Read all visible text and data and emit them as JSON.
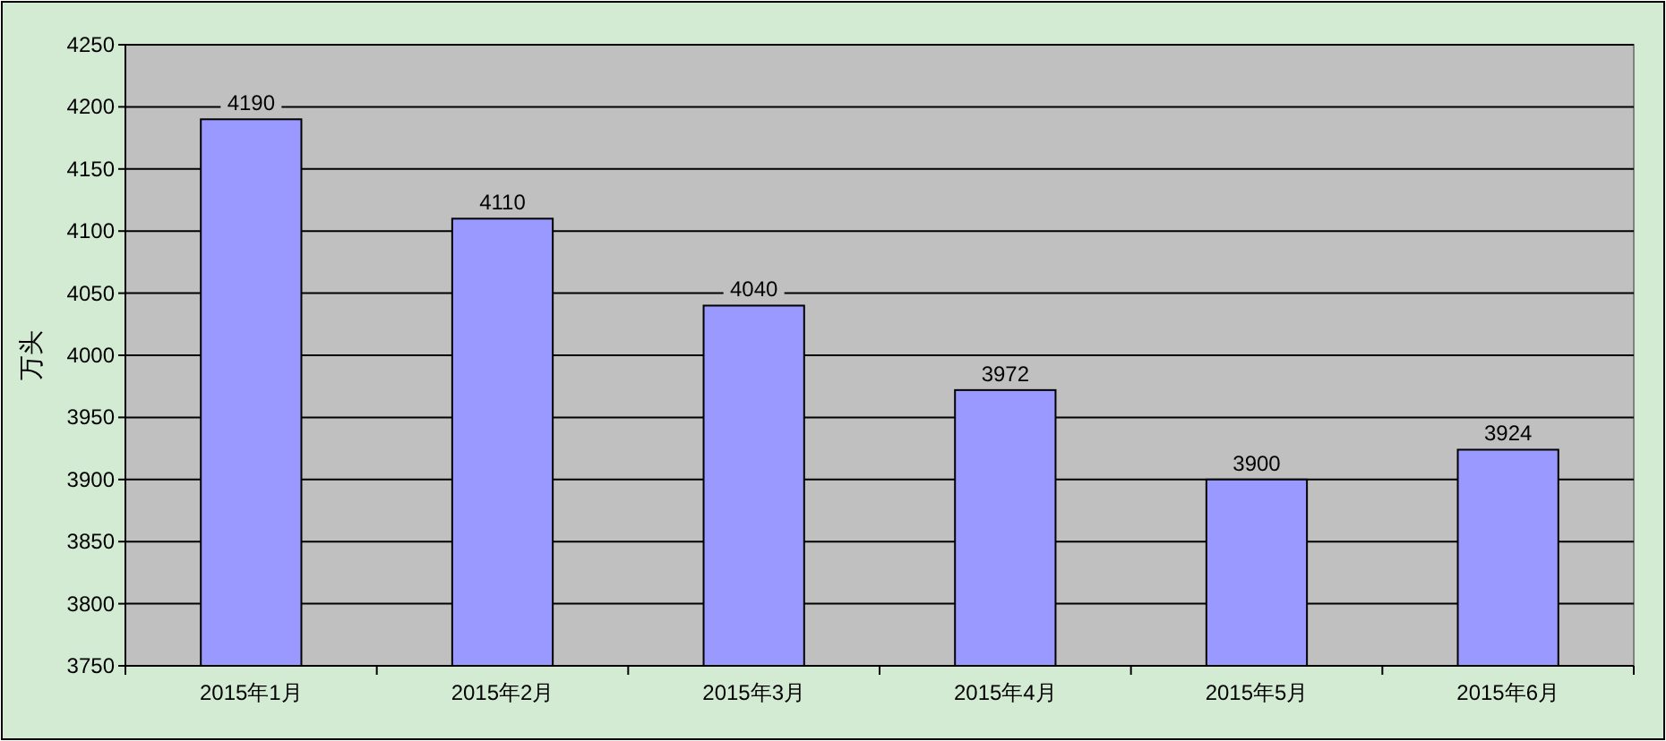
{
  "chart_data": {
    "type": "bar",
    "ylabel": "万头",
    "categories": [
      "2015年1月",
      "2015年2月",
      "2015年3月",
      "2015年4月",
      "2015年5月",
      "2015年6月"
    ],
    "values": [
      4190,
      4110,
      4040,
      3972,
      3900,
      3924
    ],
    "color": "#9999ff",
    "ylim": [
      3750,
      4250
    ],
    "yticks": [
      3750,
      3800,
      3850,
      3900,
      3950,
      4000,
      4050,
      4100,
      4150,
      4200,
      4250
    ],
    "grid": "y",
    "data_labels": true
  }
}
